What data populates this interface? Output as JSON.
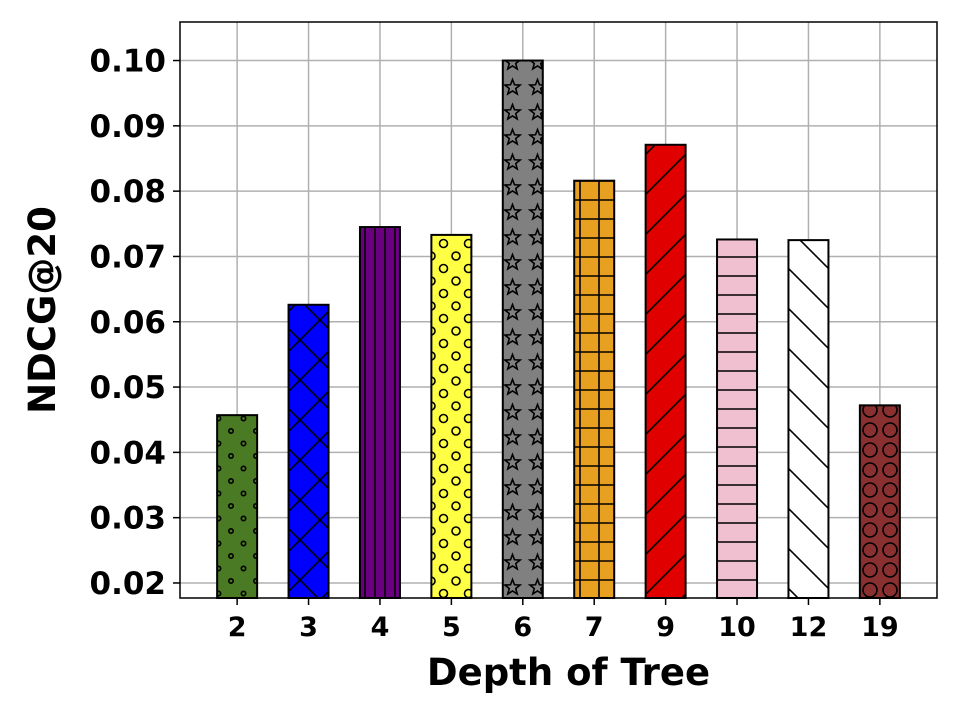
{
  "chart_data": {
    "type": "bar",
    "title": "",
    "xlabel": "Depth of Tree",
    "ylabel": "NDCG@20",
    "categories": [
      "2",
      "3",
      "4",
      "5",
      "6",
      "7",
      "9",
      "10",
      "12",
      "19"
    ],
    "values": [
      0.0457,
      0.0626,
      0.0745,
      0.0733,
      0.1,
      0.0816,
      0.0871,
      0.0726,
      0.0725,
      0.0472
    ],
    "colors": [
      "#4a7a23",
      "#0000ff",
      "#6a0080",
      "#ffff44",
      "#808080",
      "#e8a020",
      "#e00000",
      "#f0c0d0",
      "#ffffff",
      "#8b3030"
    ],
    "hatches": [
      "dots-small",
      "crosshatch-diag",
      "vertical",
      "circles-small",
      "stars",
      "grid",
      "diag-forward",
      "horizontal",
      "diag-back",
      "circles-large"
    ],
    "ylim": [
      0.0177,
      0.1059
    ],
    "yticks": [
      "0.02",
      "0.03",
      "0.04",
      "0.05",
      "0.06",
      "0.07",
      "0.08",
      "0.09",
      "0.10"
    ],
    "grid": true,
    "legend": "none"
  }
}
